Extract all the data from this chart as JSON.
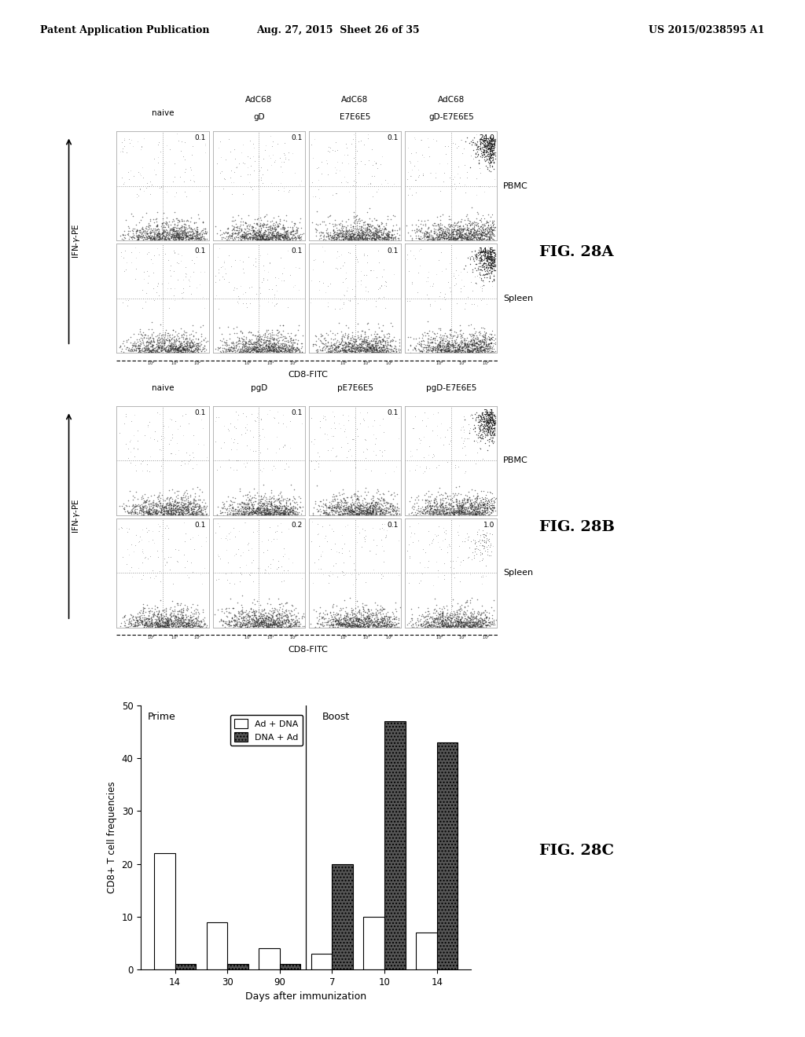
{
  "header_left": "Patent Application Publication",
  "header_center": "Aug. 27, 2015  Sheet 26 of 35",
  "header_right": "US 2015/0238595 A1",
  "fig28a_title": "FIG. 28A",
  "fig28b_title": "FIG. 28B",
  "fig28c_title": "FIG. 28C",
  "fig28a_col_labels_line1": [
    "",
    "AdC68",
    "AdC68",
    "AdC68"
  ],
  "fig28a_col_labels_line2": [
    "naive",
    "gD",
    "E7E6E5",
    "gD-E7E6E5"
  ],
  "fig28a_row_labels": [
    "PBMC",
    "Spleen"
  ],
  "fig28a_values_pbmc": [
    "0.1",
    "0.1",
    "0.1",
    "24.0"
  ],
  "fig28a_values_spleen": [
    "0.1",
    "0.1",
    "0.1",
    "14.5"
  ],
  "fig28b_col_labels_line1": [
    "",
    "",
    "",
    ""
  ],
  "fig28b_col_labels_line2": [
    "naive",
    "pgD",
    "pE7E6E5",
    "pgD-E7E6E5"
  ],
  "fig28b_row_labels": [
    "PBMC",
    "Spleen"
  ],
  "fig28b_values_pbmc": [
    "0.1",
    "0.1",
    "0.1",
    "3.1"
  ],
  "fig28b_values_spleen": [
    "0.1",
    "0.2",
    "0.1",
    "1.0"
  ],
  "fig28c_xlabel": "Days after immunization",
  "fig28c_ylabel": "CD8+ T cell frequencies",
  "fig28c_ylim": [
    0,
    50
  ],
  "fig28c_yticks": [
    0,
    10,
    20,
    30,
    40,
    50
  ],
  "fig28c_prime_label": "Prime",
  "fig28c_boost_label": "Boost",
  "fig28c_categories": [
    "14",
    "30",
    "90",
    "7",
    "10",
    "14"
  ],
  "fig28c_ad_dna": [
    22,
    9,
    4,
    3,
    10,
    7
  ],
  "fig28c_dna_ad": [
    1,
    1,
    1,
    20,
    47,
    43
  ],
  "fig28c_legend_white": "Ad + DNA",
  "fig28c_legend_dark": "DNA + Ad",
  "bg_color": "#ffffff",
  "text_color": "#000000"
}
